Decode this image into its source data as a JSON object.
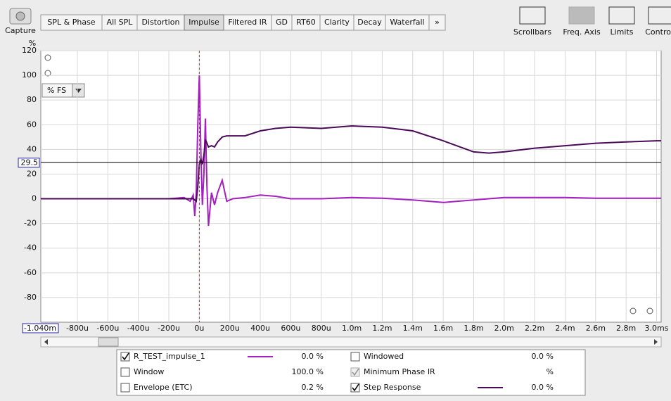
{
  "toolbar": {
    "capture": "Capture",
    "tabs": [
      "SPL & Phase",
      "All SPL",
      "Distortion",
      "Impulse",
      "Filtered IR",
      "GD",
      "RT60",
      "Clarity",
      "Decay",
      "Waterfall",
      "»"
    ],
    "selected_tab": 3,
    "tools": [
      {
        "label": "Scrollbars",
        "enabled": true
      },
      {
        "label": "Freq. Axis",
        "enabled": false
      },
      {
        "label": "Limits",
        "enabled": true
      },
      {
        "label": "Controls",
        "enabled": true
      }
    ]
  },
  "chart_data": {
    "type": "line",
    "y_unit": "%",
    "scale_menu": "% FS",
    "x": [
      -1.04,
      -0.4,
      -0.2,
      -0.1,
      -0.06,
      -0.04,
      -0.03,
      -0.02,
      -0.01,
      0,
      0.01,
      0.02,
      0.03,
      0.04,
      0.05,
      0.06,
      0.08,
      0.1,
      0.12,
      0.15,
      0.18,
      0.22,
      0.3,
      0.4,
      0.5,
      0.6,
      0.8,
      1.0,
      1.2,
      1.4,
      1.6,
      1.8,
      1.9,
      2.0,
      2.2,
      2.4,
      2.6,
      2.8,
      3.0,
      3.03
    ],
    "series": [
      {
        "name": "R_TEST_impulse_1",
        "color": "#a41fbf",
        "checked": true,
        "readout": "0.0 %",
        "values": [
          0,
          0,
          0,
          1,
          -2,
          3,
          -14,
          5,
          60,
          100,
          40,
          -5,
          20,
          65,
          10,
          -22,
          5,
          -5,
          5,
          15,
          -2,
          0,
          1,
          3,
          2,
          0,
          0,
          1,
          0.5,
          -1,
          -3,
          -1,
          0,
          1,
          1,
          1,
          0.5,
          0.5,
          0.5,
          0.5
        ]
      },
      {
        "name": "Step Response",
        "color": "#4a0a58",
        "checked": true,
        "readout": "0.0 %",
        "values": [
          0,
          0,
          0,
          0,
          0,
          0,
          -1,
          -2,
          10,
          28,
          32,
          28,
          35,
          48,
          45,
          42,
          43,
          42,
          46,
          50,
          51,
          51,
          51,
          55,
          57,
          58,
          57,
          59,
          58,
          55,
          47,
          38,
          37,
          38,
          41,
          43,
          45,
          46,
          47,
          47
        ]
      }
    ],
    "xlim": [
      -1.04,
      3.03
    ],
    "ylim": [
      -100,
      120
    ],
    "yticks": [
      -80,
      -60,
      -40,
      -20,
      0,
      20,
      40,
      60,
      80,
      100,
      120
    ],
    "xticks": [
      {
        "value": -0.8,
        "label": "-800u"
      },
      {
        "value": -0.6,
        "label": "-600u"
      },
      {
        "value": -0.4,
        "label": "-400u"
      },
      {
        "value": -0.2,
        "label": "-200u"
      },
      {
        "value": 0,
        "label": "0u"
      },
      {
        "value": 0.2,
        "label": "200u"
      },
      {
        "value": 0.4,
        "label": "400u"
      },
      {
        "value": 0.6,
        "label": "600u"
      },
      {
        "value": 0.8,
        "label": "800u"
      },
      {
        "value": 1.0,
        "label": "1.0m"
      },
      {
        "value": 1.2,
        "label": "1.2m"
      },
      {
        "value": 1.4,
        "label": "1.4m"
      },
      {
        "value": 1.6,
        "label": "1.6m"
      },
      {
        "value": 1.8,
        "label": "1.8m"
      },
      {
        "value": 2.0,
        "label": "2.0m"
      },
      {
        "value": 2.2,
        "label": "2.2m"
      },
      {
        "value": 2.4,
        "label": "2.4m"
      },
      {
        "value": 2.6,
        "label": "2.6m"
      },
      {
        "value": 2.8,
        "label": "2.8m"
      },
      {
        "value": 3.0,
        "label": "3.0ms"
      }
    ],
    "x_start": {
      "value": -1.04,
      "label": "-1.040m"
    },
    "cursor": {
      "x": 0,
      "y": 29.5
    },
    "grid": true
  },
  "panel": {
    "traces": [
      {
        "name": "Window",
        "color": "#1a1acc",
        "checked": false,
        "enabled": true,
        "readout": "100.0 %"
      },
      {
        "name": "Envelope (ETC)",
        "color": "#a02a9a",
        "checked": false,
        "enabled": true,
        "readout": "0.2 %"
      },
      {
        "name": "Windowed",
        "color": "#c020c8",
        "checked": false,
        "enabled": true,
        "readout": "0.0 %"
      },
      {
        "name": "Minimum Phase IR",
        "color": "#999999",
        "checked": true,
        "enabled": false,
        "readout": "%"
      }
    ]
  }
}
